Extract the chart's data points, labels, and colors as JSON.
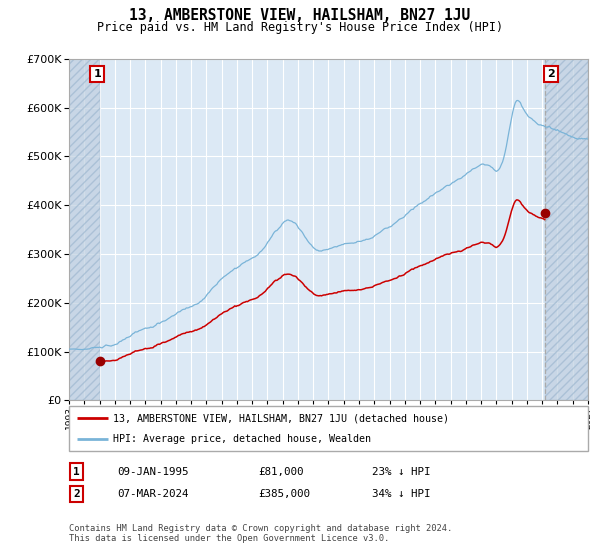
{
  "title": "13, AMBERSTONE VIEW, HAILSHAM, BN27 1JU",
  "subtitle": "Price paid vs. HM Land Registry's House Price Index (HPI)",
  "red_label": "13, AMBERSTONE VIEW, HAILSHAM, BN27 1JU (detached house)",
  "blue_label": "HPI: Average price, detached house, Wealden",
  "annotation1_date": "09-JAN-1995",
  "annotation1_price": "£81,000",
  "annotation1_hpi": "23% ↓ HPI",
  "annotation2_date": "07-MAR-2024",
  "annotation2_price": "£385,000",
  "annotation2_hpi": "34% ↓ HPI",
  "footnote": "Contains HM Land Registry data © Crown copyright and database right 2024.\nThis data is licensed under the Open Government Licence v3.0.",
  "sale1_year": 1995.04,
  "sale1_value": 81000,
  "sale2_year": 2024.18,
  "sale2_value": 385000,
  "ylim": [
    0,
    700000
  ],
  "xlim_start": 1993.0,
  "xlim_end": 2027.0,
  "plot_bg_color": "#dce9f5",
  "hatch_color": "#c0cfe0",
  "grid_color": "#ffffff",
  "red_line_color": "#cc0000",
  "blue_line_color": "#7ab4d8",
  "marker_color": "#990000",
  "vline_color": "#aaaaaa",
  "spine_color": "#aaaaaa"
}
